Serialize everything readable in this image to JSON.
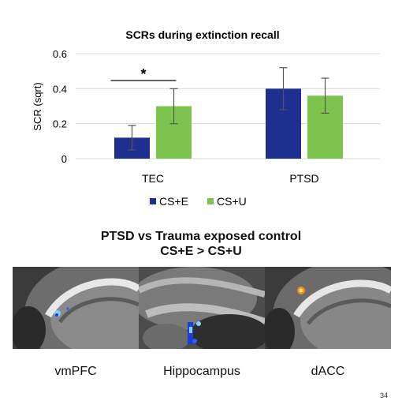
{
  "chart_data": {
    "type": "bar",
    "title": "SCRs during extinction recall",
    "ylabel": "SCR (sqrt)",
    "xlabel": "",
    "ylim": [
      0,
      0.6
    ],
    "yticks": [
      "0",
      "0.2",
      "0.4",
      "0.6"
    ],
    "categories": [
      "TEC",
      "PTSD"
    ],
    "series": [
      {
        "name": "CS+E",
        "values": [
          0.12,
          0.4
        ],
        "error": [
          0.07,
          0.12
        ],
        "color": "#1f2f8f"
      },
      {
        "name": "CS+U",
        "values": [
          0.3,
          0.36
        ],
        "error": [
          0.1,
          0.1
        ],
        "color": "#7cc44d"
      }
    ],
    "annotations": [
      {
        "text": "*",
        "category": "TEC"
      }
    ],
    "grid": true,
    "legend_position": "bottom"
  },
  "imaging": {
    "title_line1": "PTSD vs Trauma exposed control",
    "title_line2": "CS+E > CS+U",
    "panels": [
      {
        "label": "vmPFC",
        "icon": "sagittal-brain-slice"
      },
      {
        "label": "Hippocampus",
        "icon": "coronal-brain-slice"
      },
      {
        "label": "dACC",
        "icon": "sagittal-brain-slice"
      }
    ]
  },
  "slide_number": "34"
}
